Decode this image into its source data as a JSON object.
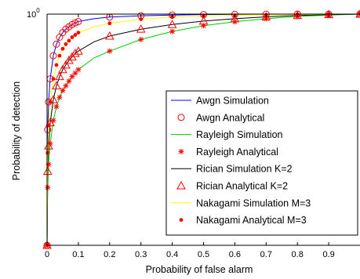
{
  "chart_data": {
    "type": "line",
    "title": "",
    "xlabel": "Probability of false alarm",
    "ylabel": "Probability of detection",
    "xlim": [
      0,
      1
    ],
    "ylim": [
      0,
      1
    ],
    "y_scale": "log",
    "x_ticks": [
      "0",
      "0.1",
      "0.2",
      "0.3",
      "0.4",
      "0.5",
      "0.6",
      "0.7",
      "0.8",
      "0.9"
    ],
    "y_tick_label": "10^0",
    "y_tick_base": "10",
    "y_tick_exp": "0",
    "grid": false,
    "legend_position": "bottom-right",
    "series": [
      {
        "name": "Awgn Simulation",
        "style": "line",
        "color": "#0000ff",
        "x": [
          0,
          0.002,
          0.005,
          0.01,
          0.02,
          0.03,
          0.04,
          0.05,
          0.06,
          0.07,
          0.08,
          0.09,
          0.1,
          0.15,
          0.2,
          0.3,
          0.4,
          0.5,
          0.6,
          0.7,
          0.8,
          0.9,
          1.0
        ],
        "y": [
          0,
          0.5,
          0.62,
          0.72,
          0.82,
          0.87,
          0.9,
          0.92,
          0.935,
          0.945,
          0.955,
          0.962,
          0.968,
          0.98,
          0.987,
          0.993,
          0.996,
          0.998,
          0.999,
          0.9995,
          0.9998,
          0.9999,
          1.0
        ]
      },
      {
        "name": "Awgn Analytical",
        "style": "marker",
        "marker": "circle",
        "color": "#ff0000",
        "x": [
          0,
          0.002,
          0.005,
          0.01,
          0.02,
          0.03,
          0.04,
          0.05,
          0.06,
          0.07,
          0.08,
          0.09,
          0.1,
          0.2,
          0.3,
          0.4,
          0.5,
          0.6,
          0.7,
          0.8,
          0.9,
          1.0
        ],
        "y": [
          0.0,
          0.5,
          0.62,
          0.72,
          0.82,
          0.87,
          0.9,
          0.92,
          0.935,
          0.945,
          0.955,
          0.962,
          0.968,
          0.987,
          0.993,
          0.996,
          0.998,
          0.999,
          0.9995,
          0.9998,
          0.9999,
          1.0
        ]
      },
      {
        "name": "Rayleigh Simulation",
        "style": "line",
        "color": "#00cc00",
        "x": [
          0,
          0.002,
          0.005,
          0.01,
          0.02,
          0.03,
          0.04,
          0.05,
          0.06,
          0.07,
          0.08,
          0.09,
          0.1,
          0.15,
          0.2,
          0.3,
          0.4,
          0.5,
          0.6,
          0.7,
          0.8,
          0.9,
          1.0
        ],
        "y": [
          0,
          0.25,
          0.35,
          0.44,
          0.54,
          0.6,
          0.64,
          0.67,
          0.69,
          0.71,
          0.73,
          0.745,
          0.76,
          0.81,
          0.84,
          0.89,
          0.925,
          0.95,
          0.967,
          0.98,
          0.99,
          0.996,
          1.0
        ]
      },
      {
        "name": "Rayleigh Analytical",
        "style": "marker",
        "marker": "star",
        "color": "#ff0000",
        "x": [
          0,
          0.002,
          0.005,
          0.01,
          0.02,
          0.03,
          0.04,
          0.05,
          0.06,
          0.07,
          0.08,
          0.09,
          0.1,
          0.2,
          0.3,
          0.4,
          0.5,
          0.6,
          0.7,
          0.8,
          0.9,
          1.0
        ],
        "y": [
          0.0,
          0.25,
          0.35,
          0.44,
          0.54,
          0.6,
          0.64,
          0.67,
          0.69,
          0.71,
          0.73,
          0.745,
          0.76,
          0.84,
          0.89,
          0.925,
          0.95,
          0.967,
          0.98,
          0.99,
          0.996,
          1.0
        ]
      },
      {
        "name": "Rician Simulation K=2",
        "style": "line",
        "color": "#000000",
        "x": [
          0,
          0.002,
          0.005,
          0.01,
          0.02,
          0.03,
          0.04,
          0.05,
          0.06,
          0.07,
          0.08,
          0.09,
          0.1,
          0.15,
          0.2,
          0.3,
          0.4,
          0.5,
          0.6,
          0.7,
          0.8,
          0.9,
          1.0
        ],
        "y": [
          0,
          0.32,
          0.43,
          0.53,
          0.63,
          0.69,
          0.73,
          0.76,
          0.78,
          0.8,
          0.815,
          0.83,
          0.84,
          0.88,
          0.905,
          0.935,
          0.955,
          0.97,
          0.98,
          0.988,
          0.994,
          0.998,
          1.0
        ]
      },
      {
        "name": "Rician Analytical K=2",
        "style": "marker",
        "marker": "triangle",
        "color": "#ff0000",
        "x": [
          0,
          0.002,
          0.005,
          0.01,
          0.02,
          0.03,
          0.04,
          0.05,
          0.06,
          0.07,
          0.08,
          0.09,
          0.1,
          0.2,
          0.3,
          0.4,
          0.5,
          0.6,
          0.7,
          0.8,
          0.9,
          1.0
        ],
        "y": [
          0.0,
          0.32,
          0.43,
          0.53,
          0.63,
          0.69,
          0.73,
          0.76,
          0.78,
          0.8,
          0.815,
          0.83,
          0.84,
          0.905,
          0.935,
          0.955,
          0.97,
          0.98,
          0.988,
          0.994,
          0.998,
          1.0
        ]
      },
      {
        "name": "Nakagami Simulation M=3",
        "style": "line",
        "color": "#ffff00",
        "x": [
          0,
          0.002,
          0.005,
          0.01,
          0.02,
          0.03,
          0.04,
          0.05,
          0.06,
          0.07,
          0.08,
          0.09,
          0.1,
          0.15,
          0.2,
          0.3,
          0.4,
          0.5,
          0.6,
          0.7,
          0.8,
          0.9,
          1.0
        ],
        "y": [
          0,
          0.4,
          0.52,
          0.62,
          0.72,
          0.78,
          0.82,
          0.85,
          0.87,
          0.885,
          0.9,
          0.91,
          0.92,
          0.945,
          0.96,
          0.978,
          0.987,
          0.992,
          0.995,
          0.997,
          0.998,
          0.9995,
          1.0
        ]
      },
      {
        "name": "Nakagami Analytical M=3",
        "style": "marker",
        "marker": "dot",
        "color": "#ff0000",
        "x": [
          0,
          0.002,
          0.005,
          0.01,
          0.02,
          0.03,
          0.04,
          0.05,
          0.06,
          0.07,
          0.08,
          0.09,
          0.1,
          0.2,
          0.3,
          0.4,
          0.5,
          0.6,
          0.7,
          0.8,
          0.9,
          1.0
        ],
        "y": [
          0.0,
          0.4,
          0.52,
          0.62,
          0.72,
          0.78,
          0.82,
          0.85,
          0.87,
          0.885,
          0.9,
          0.91,
          0.92,
          0.96,
          0.978,
          0.987,
          0.992,
          0.995,
          0.997,
          0.998,
          0.9995,
          1.0
        ]
      }
    ]
  }
}
